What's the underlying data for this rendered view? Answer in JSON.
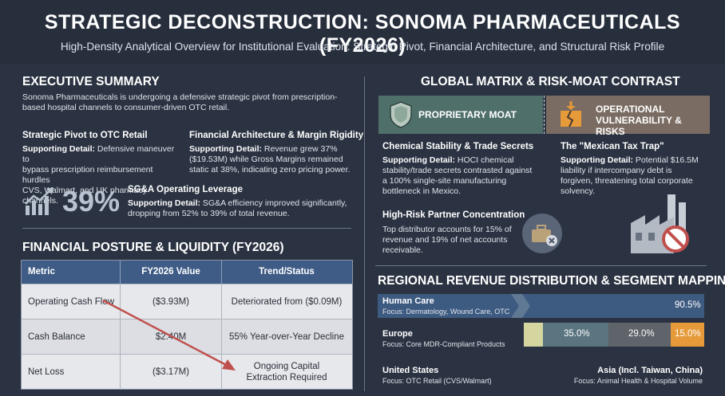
{
  "header": {
    "title": "STRATEGIC DECONSTRUCTION: SONOMA PHARMACEUTICALS (FY2026)",
    "subtitle": "High-Density Analytical Overview for Institutional Evaluation: Strategic Pivot, Financial Architecture, and Structural Risk Profile"
  },
  "executive_summary": {
    "title": "EXECUTIVE SUMMARY",
    "intro_line1": "Sonoma Pharmaceuticals is undergoing a defensive strategic pivot from prescription-",
    "intro_line2": "based hospital channels to consumer-driven OTC retail.",
    "supporting_label": "Supporting Detail:",
    "pivot": {
      "heading": "Strategic Pivot to OTC Retail",
      "line1": "Defensive maneuver to",
      "line2": "bypass prescription reimbursement hurdles",
      "line3": "CVS, Walmart, and UK pharmacy channels."
    },
    "margin": {
      "heading": "Financial Architecture & Margin Rigidity",
      "line1": "Revenue grew 37%",
      "line2": "($19.53M) while Gross Margins remained",
      "line3": "static at 38%, indicating zero pricing power."
    },
    "sga": {
      "big_value": "39%",
      "heading": "SG&A Operating Leverage",
      "line1": "SG&A efficiency improved significantly,",
      "line2": "dropping from 52% to 39% of total revenue."
    }
  },
  "financial_posture": {
    "title": "FINANCIAL POSTURE & LIQUIDITY (FY2026)",
    "columns": [
      "Metric",
      "FY2026 Value",
      "Trend/Status"
    ],
    "rows": [
      {
        "metric": "Operating Cash Flow",
        "value": "($3.93M)",
        "status": "Deteriorated from ($0.09M)"
      },
      {
        "metric": "Cash Balance",
        "value": "$2.40M",
        "status": "55% Year-over-Year Decline"
      },
      {
        "metric": "Net Loss",
        "value": "($3.17M)",
        "status_line1": "Ongoing Capital",
        "status_line2": "Extraction Required"
      }
    ]
  },
  "global_matrix": {
    "title": "GLOBAL MATRIX & RISK-MOAT CONTRAST",
    "moat_label": "PROPRIETARY MOAT",
    "risk_label_line1": "OPERATIONAL",
    "risk_label_line2": "VULNERABILITY & RISKS",
    "supporting_label": "Supporting Detail:",
    "chemical": {
      "heading": "Chemical Stability & Trade Secrets",
      "line1": "HOCI chemical",
      "line2": "stability/trade secrets contrasted against",
      "line3": "a 100% single-site manufacturing",
      "line4": "bottleneck in Mexico."
    },
    "mexican_tax": {
      "heading": "The \"Mexican Tax Trap\"",
      "line1": "Potential $16.5M",
      "line2": "liability if intercompany debt is",
      "line3": "forgiven, threatening total corporate",
      "line4": "solvency."
    },
    "partner": {
      "heading": "High-Risk Partner Concentration",
      "line1": "Top distributor accounts for 15% of",
      "line2": "revenue and 19% of net accounts",
      "line3": "receivable."
    }
  },
  "regional": {
    "title": "REGIONAL REVENUE DISTRIBUTION & SEGMENT MAPPING",
    "human_care": {
      "label": "Human Care",
      "focus": "Focus: Dermatology, Wound Care, OTC",
      "value": "90.5%",
      "fraction": 0.905
    },
    "europe": {
      "label": "Europe",
      "focus": "Focus: Core MDR-Compliant Products"
    },
    "us": {
      "label": "United States",
      "focus": "Focus: OTC Retail (CVS/Walmart)"
    },
    "asia": {
      "label": "Asia (Incl. Taiwan, China)",
      "focus": "Focus: Animal Health & Hospital Volume"
    },
    "segments": [
      {
        "value": "35.0%",
        "color": "#5a7480"
      },
      {
        "value": "29.0%",
        "color": "#5f636a"
      },
      {
        "value": "15.0%",
        "color": "#e69a3a"
      }
    ]
  },
  "colors": {
    "background": "#2b3342",
    "table_header": "#3f5c86",
    "moat": "#4f6f6a",
    "risk": "#7a6c62",
    "human_care": "#3d5a80",
    "accent_arrow": "#c0504d"
  },
  "icons": [
    "growth-chart-icon",
    "shield-icon",
    "broken-box-icon",
    "partner-briefcase-icon",
    "factory-no-icon"
  ]
}
